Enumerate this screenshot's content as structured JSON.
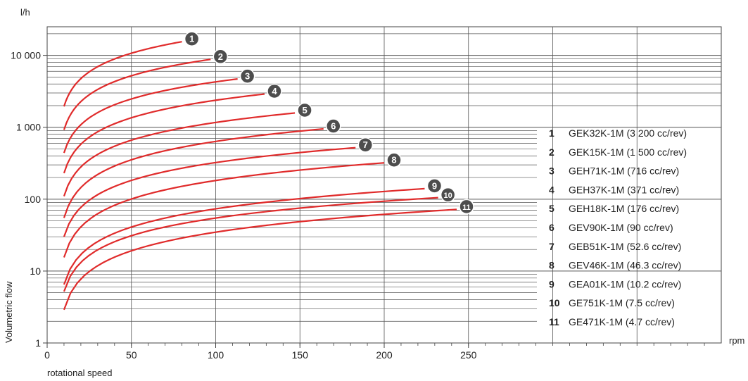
{
  "chart_data": {
    "type": "line",
    "title": "",
    "xlabel": "rotational speed",
    "xunit": "rpm",
    "ylabel": "Volumetric flow",
    "yunit": "l/h",
    "xlim": [
      0,
      400
    ],
    "ylim": [
      1,
      25000
    ],
    "yscale": "log",
    "grid": true,
    "x_tick_labels": [
      "0",
      "50",
      "100",
      "150",
      "200",
      "250"
    ],
    "x_tick_values": [
      0,
      50,
      100,
      150,
      200,
      250
    ],
    "y_tick_labels": [
      "1",
      "10",
      "100",
      "1 000",
      "10 000"
    ],
    "y_tick_values": [
      1,
      10,
      100,
      1000,
      10000
    ],
    "line_color": "#e02b2b",
    "marker_color": "#4d4d4d",
    "legend_position": "right",
    "series": [
      {
        "id": "1",
        "name": "GEK32K-1M (3 200 cc/rev)",
        "x": [
          10,
          80
        ],
        "y": [
          1950,
          15500
        ]
      },
      {
        "id": "2",
        "name": "GEK15K-1M (1 500 cc/rev)",
        "x": [
          10,
          97
        ],
        "y": [
          920,
          8800
        ]
      },
      {
        "id": "3",
        "name": "GEH71K-1M (716 cc/rev)",
        "x": [
          10,
          113
        ],
        "y": [
          440,
          4700
        ]
      },
      {
        "id": "4",
        "name": "GEH37K-1M (371 cc/rev)",
        "x": [
          10,
          129
        ],
        "y": [
          230,
          2900
        ]
      },
      {
        "id": "5",
        "name": "GEH18K-1M (176 cc/rev)",
        "x": [
          10,
          147
        ],
        "y": [
          110,
          1580
        ]
      },
      {
        "id": "6",
        "name": "GEV90K-1M (90 cc/rev)",
        "x": [
          10,
          164
        ],
        "y": [
          55,
          950
        ]
      },
      {
        "id": "7",
        "name": "GEB51K-1M (52.6 cc/rev)",
        "x": [
          10,
          183
        ],
        "y": [
          30,
          520
        ]
      },
      {
        "id": "8",
        "name": "GEV46K-1M (46.3 cc/rev)",
        "x": [
          10,
          200
        ],
        "y": [
          15.5,
          320
        ]
      },
      {
        "id": "9",
        "name": "GEA01K-1M (10.2 cc/rev)",
        "x": [
          10,
          224
        ],
        "y": [
          6.5,
          140
        ]
      },
      {
        "id": "10",
        "name": "GE751K-1M (7.5 cc/rev)",
        "x": [
          10,
          232
        ],
        "y": [
          5.2,
          105
        ]
      },
      {
        "id": "11",
        "name": "GE471K-1M (4.7 cc/rev)",
        "x": [
          10,
          243
        ],
        "y": [
          2.9,
          72
        ]
      }
    ]
  }
}
